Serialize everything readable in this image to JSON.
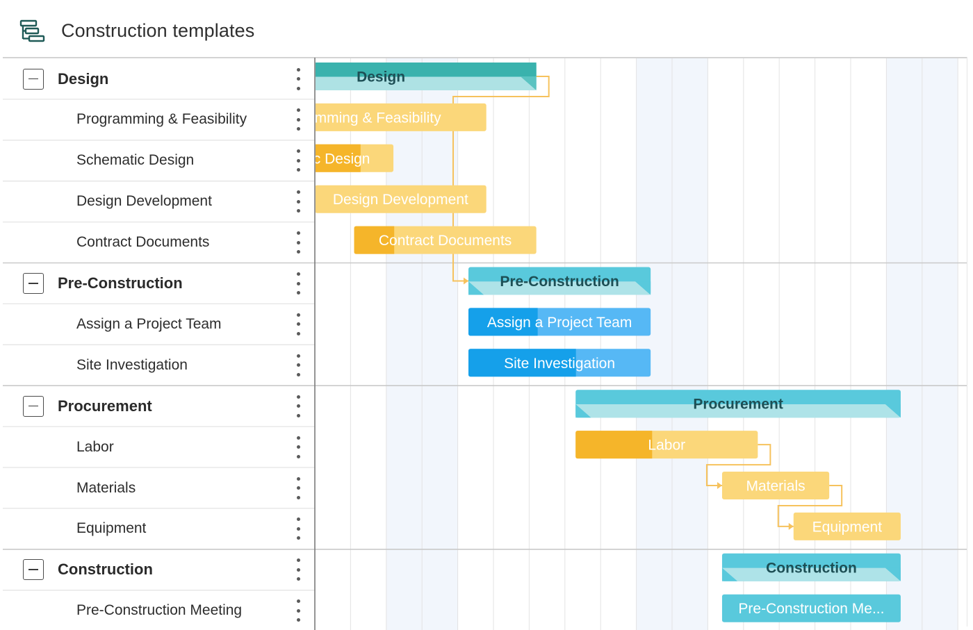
{
  "header": {
    "title": "Construction templates",
    "icon": "gantt-template-icon"
  },
  "colors": {
    "group_teal": "#5bc3c1",
    "group_teal_dark": "#3ab2ad",
    "group_cyan": "#59c9dc",
    "yellow_light": "#fbd77a",
    "yellow_dark": "#f5b52a",
    "blue_light": "#56b8f5",
    "blue_dark": "#15a0ea",
    "connector": "#f6c25d",
    "grid_line": "#e3e3e3",
    "weekend_shade": "#f2f6fc"
  },
  "rows": [
    {
      "type": "group",
      "label": "Design"
    },
    {
      "type": "task",
      "label": "Programming & Feasibility"
    },
    {
      "type": "task",
      "label": "Schematic Design"
    },
    {
      "type": "task",
      "label": "Design Development"
    },
    {
      "type": "task",
      "label": "Contract Documents"
    },
    {
      "type": "group",
      "label": "Pre-Construction"
    },
    {
      "type": "task",
      "label": "Assign a Project Team"
    },
    {
      "type": "task",
      "label": "Site Investigation"
    },
    {
      "type": "group",
      "label": "Procurement"
    },
    {
      "type": "task",
      "label": "Labor"
    },
    {
      "type": "task",
      "label": "Materials"
    },
    {
      "type": "task",
      "label": "Equipment"
    },
    {
      "type": "group",
      "label": "Construction"
    },
    {
      "type": "task",
      "label": "Pre-Construction Meeting"
    }
  ],
  "timeline": {
    "visible_columns": 18,
    "shaded_columns": [
      2,
      3,
      9,
      10,
      16,
      17
    ],
    "bars": [
      {
        "row": 0,
        "label": "Design",
        "kind": "group",
        "start": -2.5,
        "end": 6.2,
        "progress": 1.0,
        "color": "teal"
      },
      {
        "row": 1,
        "label": "Programming & Feasibility",
        "kind": "task",
        "start": -2.5,
        "end": 4.8,
        "progress": 0.0,
        "color": "yellow"
      },
      {
        "row": 2,
        "label": "Schematic Design",
        "kind": "task",
        "start": -2.4,
        "end": 2.2,
        "progress": 0.8,
        "color": "yellow"
      },
      {
        "row": 3,
        "label": "Design Development",
        "kind": "task",
        "start": 0.0,
        "end": 4.8,
        "progress": 0.0,
        "color": "yellow"
      },
      {
        "row": 4,
        "label": "Contract Documents",
        "kind": "task",
        "start": 1.1,
        "end": 6.2,
        "progress": 0.22,
        "color": "yellow"
      },
      {
        "row": 5,
        "label": "Pre-Construction",
        "kind": "group",
        "start": 4.3,
        "end": 9.4,
        "progress": 0.0,
        "color": "cyan"
      },
      {
        "row": 6,
        "label": "Assign a Project Team",
        "kind": "task",
        "start": 4.3,
        "end": 9.4,
        "progress": 0.38,
        "color": "blue"
      },
      {
        "row": 7,
        "label": "Site Investigation",
        "kind": "task",
        "start": 4.3,
        "end": 9.4,
        "progress": 0.59,
        "color": "blue"
      },
      {
        "row": 8,
        "label": "Procurement",
        "kind": "group",
        "start": 7.3,
        "end": 16.4,
        "progress": 0.0,
        "color": "cyan"
      },
      {
        "row": 9,
        "label": "Labor",
        "kind": "task",
        "start": 7.3,
        "end": 12.4,
        "progress": 0.42,
        "color": "yellow"
      },
      {
        "row": 10,
        "label": "Materials",
        "kind": "task",
        "start": 11.4,
        "end": 14.4,
        "progress": 0.0,
        "color": "yellow"
      },
      {
        "row": 11,
        "label": "Equipment",
        "kind": "task",
        "start": 13.4,
        "end": 16.4,
        "progress": 0.0,
        "color": "yellow"
      },
      {
        "row": 12,
        "label": "Construction",
        "kind": "group",
        "start": 11.4,
        "end": 16.4,
        "progress": 0.0,
        "color": "cyan"
      },
      {
        "row": 13,
        "label": "Pre-Construction Me...",
        "kind": "task",
        "start": 11.4,
        "end": 16.4,
        "progress": 0.0,
        "color": "cyan"
      }
    ],
    "links": [
      {
        "from": 0,
        "to": 5
      },
      {
        "from": 9,
        "to": 10
      },
      {
        "from": 10,
        "to": 11
      }
    ]
  }
}
